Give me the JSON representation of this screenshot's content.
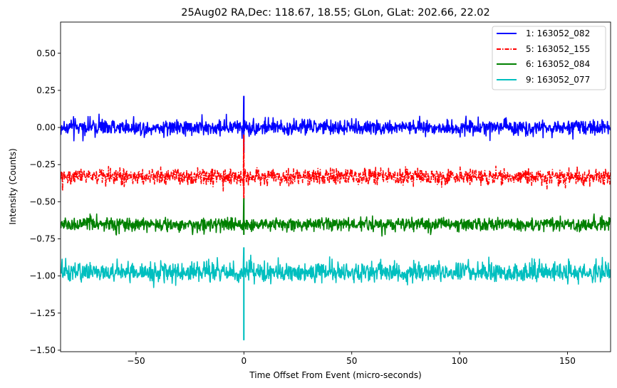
{
  "chart_data": {
    "type": "line",
    "title": "25Aug02 RA,Dec:  118.67,  18.55; GLon, GLat:  202.66,  22.02",
    "xlabel": "Time Offset From Event (micro-seconds)",
    "ylabel": "Intensity (Counts)",
    "xlim": [
      -85,
      170
    ],
    "ylim": [
      -1.51,
      0.71
    ],
    "xticks": [
      -50,
      0,
      50,
      100,
      150
    ],
    "xtick_labels": [
      "−50",
      "0",
      "50",
      "100",
      "150"
    ],
    "yticks": [
      0.5,
      0.25,
      0.0,
      -0.25,
      -0.5,
      -0.75,
      -1.0,
      -1.25,
      -1.5
    ],
    "ytick_labels": [
      "0.50",
      "0.25",
      "0.00",
      "−0.25",
      "−0.50",
      "−0.75",
      "−1.00",
      "−1.25",
      "−1.50"
    ],
    "grid": false,
    "legend_position": "top-right",
    "series": [
      {
        "name": "1: 163052_082",
        "label": "1: 163052_082",
        "color": "#0000ff",
        "linestyle": "solid",
        "baseline": 0.0,
        "noise_range": [
          -0.12,
          0.12
        ],
        "spike": {
          "x": 0.0,
          "max": 0.21,
          "min": -0.17
        }
      },
      {
        "name": "5: 163052_155",
        "label": "5: 163052_155",
        "color": "#ff0000",
        "linestyle": "dashdot",
        "baseline": -0.33,
        "noise_range": [
          -0.46,
          -0.21
        ],
        "spike": {
          "x": 0.0,
          "max": -0.05,
          "min": -0.48
        }
      },
      {
        "name": "6: 163052_084",
        "label": "6: 163052_084",
        "color": "#008000",
        "linestyle": "solid",
        "baseline": -0.65,
        "noise_range": [
          -0.77,
          -0.56
        ],
        "spike": {
          "x": 0.0,
          "max": -0.48,
          "min": -0.72
        }
      },
      {
        "name": "9: 163052_077",
        "label": "9: 163052_077",
        "color": "#00bfbf",
        "linestyle": "solid",
        "baseline": -0.98,
        "noise_range": [
          -1.11,
          -0.81
        ],
        "spike": {
          "x": 0.0,
          "max": -0.81,
          "min": -1.43
        }
      }
    ]
  }
}
